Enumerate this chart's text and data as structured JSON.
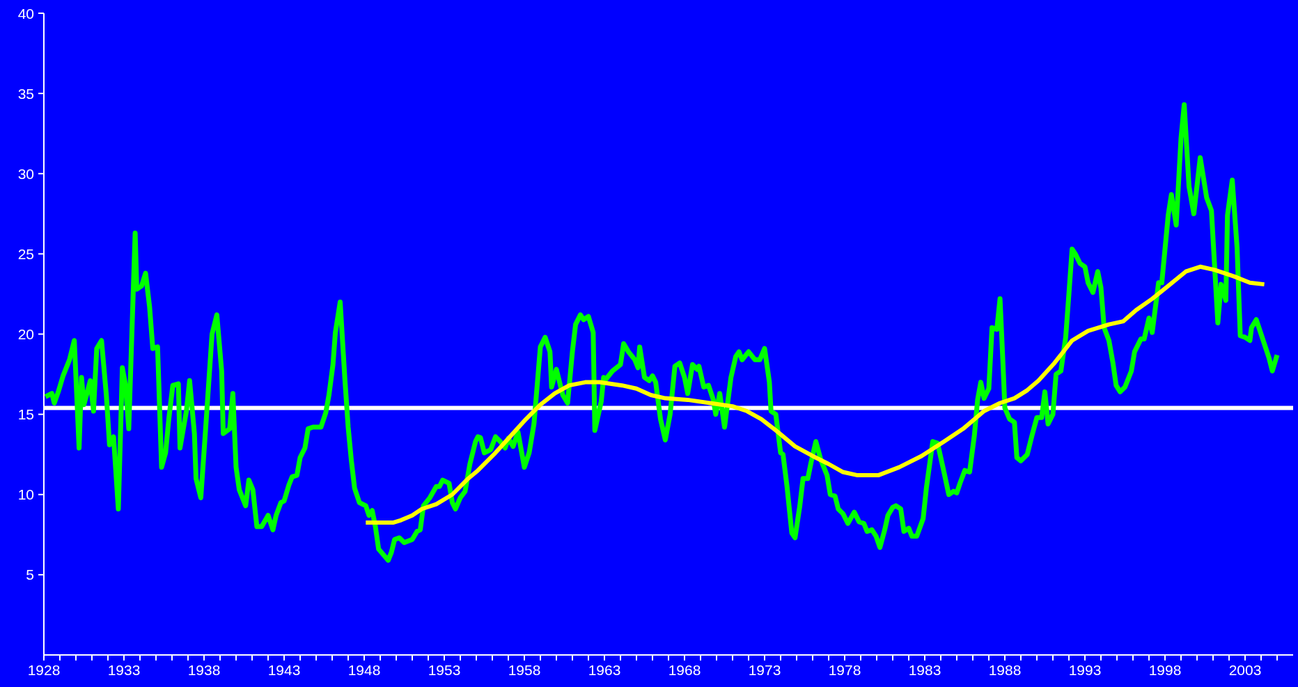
{
  "chart_data": {
    "type": "line",
    "xlim": [
      1928,
      2006
    ],
    "xticks": [
      1928,
      {
        "value": 1929,
        "label": null
      },
      {
        "value": 1930,
        "label": null
      },
      {
        "value": 1931,
        "label": null
      },
      {
        "value": 1932,
        "label": null
      },
      1933,
      {
        "value": 1934,
        "label": null
      },
      {
        "value": 1935,
        "label": null
      },
      {
        "value": 1936,
        "label": null
      },
      {
        "value": 1937,
        "label": null
      },
      1938,
      {
        "value": 1939,
        "label": null
      },
      {
        "value": 1940,
        "label": null
      },
      {
        "value": 1941,
        "label": null
      },
      {
        "value": 1942,
        "label": null
      },
      1943,
      {
        "value": 1944,
        "label": null
      },
      {
        "value": 1945,
        "label": null
      },
      {
        "value": 1946,
        "label": null
      },
      {
        "value": 1947,
        "label": null
      },
      1948,
      {
        "value": 1949,
        "label": null
      },
      {
        "value": 1950,
        "label": null
      },
      {
        "value": 1951,
        "label": null
      },
      {
        "value": 1952,
        "label": null
      },
      1953,
      {
        "value": 1954,
        "label": null
      },
      {
        "value": 1955,
        "label": null
      },
      {
        "value": 1956,
        "label": null
      },
      {
        "value": 1957,
        "label": null
      },
      1958,
      {
        "value": 1959,
        "label": null
      },
      {
        "value": 1960,
        "label": null
      },
      {
        "value": 1961,
        "label": null
      },
      {
        "value": 1962,
        "label": null
      },
      1963,
      {
        "value": 1964,
        "label": null
      },
      {
        "value": 1965,
        "label": null
      },
      {
        "value": 1966,
        "label": null
      },
      {
        "value": 1967,
        "label": null
      },
      1968,
      {
        "value": 1969,
        "label": null
      },
      {
        "value": 1970,
        "label": null
      },
      {
        "value": 1971,
        "label": null
      },
      {
        "value": 1972,
        "label": null
      },
      1973,
      {
        "value": 1974,
        "label": null
      },
      {
        "value": 1975,
        "label": null
      },
      {
        "value": 1976,
        "label": null
      },
      {
        "value": 1977,
        "label": null
      },
      1978,
      {
        "value": 1979,
        "label": null
      },
      {
        "value": 1980,
        "label": null
      },
      {
        "value": 1981,
        "label": null
      },
      {
        "value": 1982,
        "label": null
      },
      1983,
      {
        "value": 1984,
        "label": null
      },
      {
        "value": 1985,
        "label": null
      },
      {
        "value": 1986,
        "label": null
      },
      {
        "value": 1987,
        "label": null
      },
      1988,
      {
        "value": 1989,
        "label": null
      },
      {
        "value": 1990,
        "label": null
      },
      {
        "value": 1991,
        "label": null
      },
      {
        "value": 1992,
        "label": null
      },
      1993,
      {
        "value": 1994,
        "label": null
      },
      {
        "value": 1995,
        "label": null
      },
      {
        "value": 1996,
        "label": null
      },
      {
        "value": 1997,
        "label": null
      },
      1998,
      {
        "value": 1999,
        "label": null
      },
      {
        "value": 2000,
        "label": null
      },
      {
        "value": 2001,
        "label": null
      },
      {
        "value": 2002,
        "label": null
      },
      2003,
      {
        "value": 2004,
        "label": null
      },
      {
        "value": 2005,
        "label": null
      }
    ],
    "ylim": [
      0,
      40
    ],
    "yticks": [
      5,
      10,
      15,
      20,
      25,
      30,
      35,
      40
    ],
    "grid": false,
    "legend": false,
    "marker": "none",
    "line_style": "solid",
    "ref_lines": [
      {
        "axis": "y",
        "value": 15.4,
        "color": "#ffffff"
      }
    ],
    "series": [
      {
        "color": "#00ff00",
        "x": [
          1928.1,
          1928.5,
          1928.65,
          1928.9,
          1929.2,
          1929.4,
          1929.6,
          1929.9,
          1930.2,
          1930.35,
          1930.5,
          1930.9,
          1931.1,
          1931.3,
          1931.6,
          1931.9,
          1932.1,
          1932.35,
          1932.65,
          1932.9,
          1933.1,
          1933.3,
          1933.7,
          1933.8,
          1934.1,
          1934.35,
          1934.6,
          1934.8,
          1935.1,
          1935.35,
          1935.6,
          1935.8,
          1936.05,
          1936.4,
          1936.5,
          1936.9,
          1937.1,
          1937.4,
          1937.5,
          1937.8,
          1938.1,
          1938.5,
          1938.8,
          1939.1,
          1939.2,
          1939.6,
          1939.8,
          1940.0,
          1940.2,
          1940.6,
          1940.8,
          1941.05,
          1941.3,
          1941.6,
          1942.0,
          1942.3,
          1942.5,
          1942.8,
          1943.0,
          1943.3,
          1943.5,
          1943.8,
          1944.0,
          1944.3,
          1944.5,
          1944.8,
          1945.3,
          1945.6,
          1945.8,
          1946.05,
          1946.2,
          1946.5,
          1946.8,
          1947.0,
          1947.2,
          1947.4,
          1947.7,
          1948.1,
          1948.3,
          1948.5,
          1948.7,
          1948.9,
          1949.5,
          1949.7,
          1949.9,
          1950.2,
          1950.5,
          1951.0,
          1951.3,
          1951.5,
          1951.7,
          1952.1,
          1952.5,
          1952.7,
          1952.9,
          1953.3,
          1953.5,
          1953.7,
          1954.0,
          1954.3,
          1954.6,
          1954.95,
          1955.1,
          1955.26,
          1955.5,
          1955.9,
          1956.2,
          1956.5,
          1956.8,
          1957.0,
          1957.3,
          1957.6,
          1958.0,
          1958.3,
          1958.6,
          1959.0,
          1959.3,
          1959.6,
          1959.7,
          1960.0,
          1960.4,
          1960.7,
          1961.0,
          1961.2,
          1961.5,
          1961.7,
          1962.0,
          1962.3,
          1962.4,
          1962.8,
          1962.95,
          1963.1,
          1963.5,
          1964.0,
          1964.2,
          1964.5,
          1964.9,
          1965.1,
          1965.2,
          1965.5,
          1965.8,
          1966.0,
          1966.2,
          1966.5,
          1966.8,
          1967.1,
          1967.4,
          1967.7,
          1968.0,
          1968.2,
          1968.5,
          1968.8,
          1968.9,
          1969.2,
          1969.5,
          1969.8,
          1969.95,
          1970.2,
          1970.5,
          1970.9,
          1971.2,
          1971.4,
          1971.6,
          1972.0,
          1972.4,
          1972.7,
          1973.0,
          1973.3,
          1973.4,
          1973.7,
          1974.0,
          1974.15,
          1974.4,
          1974.7,
          1974.9,
          1975.2,
          1975.4,
          1975.7,
          1975.9,
          1976.2,
          1976.5,
          1976.9,
          1977.1,
          1977.4,
          1977.6,
          1977.9,
          1978.2,
          1978.6,
          1978.9,
          1979.2,
          1979.4,
          1979.7,
          1979.96,
          1980.2,
          1980.5,
          1980.7,
          1981.0,
          1981.2,
          1981.5,
          1981.7,
          1982.0,
          1982.2,
          1982.5,
          1982.9,
          1983.1,
          1983.5,
          1983.8,
          1984.2,
          1984.5,
          1984.8,
          1985.0,
          1985.2,
          1985.5,
          1985.8,
          1986.1,
          1986.3,
          1986.5,
          1986.7,
          1987.0,
          1987.2,
          1987.5,
          1987.7,
          1987.9,
          1988.0,
          1988.3,
          1988.6,
          1988.75,
          1989.0,
          1989.4,
          1989.7,
          1990.0,
          1990.3,
          1990.5,
          1990.7,
          1991.0,
          1991.2,
          1991.5,
          1991.8,
          1992.0,
          1992.2,
          1992.4,
          1992.7,
          1993.0,
          1993.2,
          1993.5,
          1993.8,
          1994.0,
          1994.2,
          1994.5,
          1994.75,
          1994.95,
          1995.2,
          1995.5,
          1995.9,
          1996.1,
          1996.5,
          1996.7,
          1997.0,
          1997.2,
          1997.6,
          1997.8,
          1998.2,
          1998.4,
          1998.7,
          1999.0,
          1999.2,
          1999.5,
          1999.8,
          2000.2,
          2000.6,
          2000.9,
          2001.3,
          2001.5,
          2001.8,
          2001.9,
          2002.2,
          2002.5,
          2002.7,
          2003.0,
          2003.3,
          2003.4,
          2003.7,
          2003.9,
          2004.2,
          2004.5,
          2004.7,
          2005.0
        ],
        "values": [
          16.1,
          16.3,
          15.7,
          16.4,
          17.4,
          17.9,
          18.4,
          19.6,
          12.9,
          17.3,
          15.6,
          17.1,
          15.2,
          19.1,
          19.6,
          16.2,
          13.1,
          13.6,
          9.1,
          17.9,
          16.8,
          14.1,
          26.3,
          22.8,
          23.0,
          23.8,
          21.7,
          19.1,
          19.2,
          11.7,
          12.6,
          14.7,
          16.8,
          16.9,
          12.9,
          15.2,
          17.1,
          13.8,
          11.0,
          9.8,
          14.1,
          20.0,
          21.2,
          17.7,
          13.8,
          14.1,
          16.3,
          11.7,
          10.3,
          9.3,
          10.9,
          10.3,
          8.0,
          8.0,
          8.7,
          7.8,
          8.7,
          9.5,
          9.6,
          10.6,
          11.1,
          11.2,
          12.3,
          12.9,
          14.1,
          14.2,
          14.2,
          15.1,
          16.2,
          18.1,
          20.1,
          22.0,
          17.1,
          14.2,
          12.1,
          10.4,
          9.5,
          9.3,
          8.7,
          9.0,
          8.0,
          6.6,
          5.9,
          6.4,
          7.2,
          7.3,
          7.0,
          7.2,
          7.7,
          7.8,
          9.3,
          9.8,
          10.5,
          10.5,
          10.9,
          10.7,
          9.5,
          9.1,
          9.8,
          10.2,
          11.9,
          13.3,
          13.6,
          13.55,
          12.6,
          12.8,
          13.6,
          13.3,
          12.9,
          13.5,
          13.0,
          13.9,
          11.7,
          12.6,
          14.4,
          19.2,
          19.8,
          18.9,
          16.7,
          17.8,
          16.2,
          15.7,
          18.9,
          20.6,
          21.2,
          20.9,
          21.1,
          20.1,
          14.0,
          15.8,
          17.3,
          17.2,
          17.7,
          18.1,
          19.4,
          18.9,
          18.4,
          17.9,
          19.2,
          17.3,
          17.1,
          17.4,
          17.0,
          14.7,
          13.4,
          15.0,
          18.0,
          18.2,
          17.3,
          16.3,
          18.1,
          17.8,
          18.0,
          16.7,
          16.8,
          15.9,
          15.0,
          16.3,
          14.2,
          17.3,
          18.6,
          18.9,
          18.4,
          18.9,
          18.4,
          18.4,
          19.1,
          17.0,
          15.2,
          15.0,
          12.6,
          12.5,
          10.5,
          7.6,
          7.3,
          9.3,
          11.0,
          11.0,
          12.0,
          13.3,
          12.2,
          11.2,
          10.0,
          9.9,
          9.1,
          8.8,
          8.2,
          8.9,
          8.3,
          8.2,
          7.7,
          7.8,
          7.4,
          6.7,
          7.8,
          8.7,
          9.2,
          9.3,
          9.1,
          7.7,
          7.9,
          7.4,
          7.4,
          8.5,
          10.4,
          13.3,
          13.2,
          11.4,
          10.0,
          10.2,
          10.1,
          10.7,
          11.5,
          11.4,
          13.7,
          15.9,
          17.0,
          16.0,
          16.6,
          20.4,
          20.3,
          22.2,
          17.8,
          15.4,
          14.7,
          14.5,
          12.3,
          12.1,
          12.5,
          13.7,
          14.8,
          14.8,
          16.4,
          14.4,
          15.0,
          17.5,
          17.7,
          19.8,
          22.5,
          25.3,
          25.0,
          24.4,
          24.2,
          23.2,
          22.6,
          23.9,
          22.9,
          20.4,
          19.6,
          18.2,
          16.8,
          16.4,
          16.7,
          17.7,
          18.9,
          19.7,
          19.7,
          21.0,
          20.1,
          23.2,
          23.2,
          27.4,
          28.7,
          26.8,
          32.2,
          34.3,
          29.2,
          27.5,
          31.0,
          28.5,
          27.7,
          20.7,
          23.1,
          22.1,
          27.4,
          29.6,
          25.4,
          19.9,
          19.8,
          19.6,
          20.4,
          20.9,
          20.3,
          19.4,
          18.5,
          17.7,
          18.7
        ]
      },
      {
        "color": "#ffff00",
        "x": [
          1948.1,
          1949.8,
          1950.3,
          1951.0,
          1951.6,
          1952.5,
          1953.5,
          1954.5,
          1955.1,
          1956.1,
          1957.1,
          1958.1,
          1959.0,
          1959.9,
          1960.8,
          1961.8,
          1962.7,
          1964.1,
          1965.0,
          1965.9,
          1966.8,
          1968.2,
          1969.6,
          1971.0,
          1971.9,
          1972.8,
          1973.7,
          1974.9,
          1976.0,
          1977.0,
          1977.9,
          1978.8,
          1980.1,
          1981.4,
          1982.8,
          1984.2,
          1985.4,
          1986.7,
          1987.7,
          1988.6,
          1989.4,
          1990.1,
          1991.1,
          1992.2,
          1993.2,
          1994.5,
          1995.4,
          1996.2,
          1997.2,
          1998.2,
          1999.3,
          2000.2,
          2001.1,
          2002.3,
          2003.3,
          2004.2
        ],
        "values": [
          8.25,
          8.25,
          8.4,
          8.7,
          9.1,
          9.4,
          10.0,
          11.0,
          11.5,
          12.5,
          13.6,
          14.7,
          15.6,
          16.3,
          16.8,
          17.0,
          17.0,
          16.8,
          16.6,
          16.2,
          16.0,
          15.9,
          15.7,
          15.5,
          15.2,
          14.7,
          14.0,
          13.0,
          12.4,
          11.9,
          11.4,
          11.2,
          11.2,
          11.7,
          12.4,
          13.3,
          14.1,
          15.2,
          15.7,
          16.0,
          16.5,
          17.1,
          18.2,
          19.6,
          20.2,
          20.6,
          20.8,
          21.5,
          22.2,
          23.0,
          23.9,
          24.2,
          24.0,
          23.6,
          23.2,
          23.1
        ]
      }
    ]
  }
}
